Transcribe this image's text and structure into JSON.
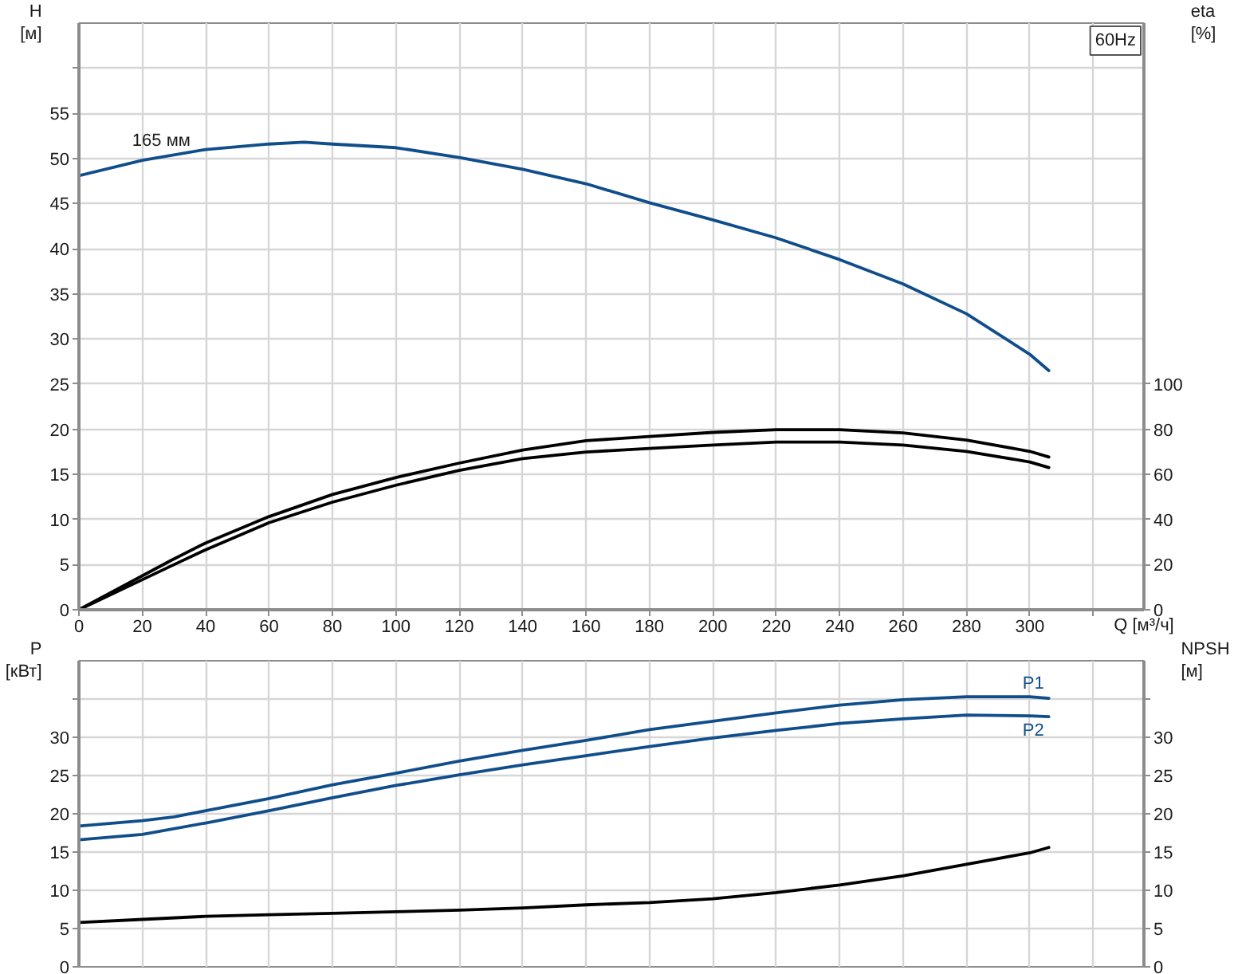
{
  "chart_data": [
    {
      "type": "line",
      "xlabel": "Q [м³/ч]",
      "ylabel": "H [м]",
      "y2label": "eta [%]",
      "xlim": [
        0,
        336
      ],
      "xticks": [
        0,
        20,
        40,
        60,
        80,
        100,
        120,
        140,
        160,
        180,
        200,
        220,
        240,
        260,
        280,
        300,
        {
          "value": 320,
          "label": null
        }
      ],
      "ylim": [
        0,
        65
      ],
      "yticks": [
        0,
        5,
        10,
        15,
        20,
        25,
        30,
        35,
        40,
        45,
        50,
        55,
        {
          "value": 60,
          "label": null
        }
      ],
      "y2lim": [
        0,
        260
      ],
      "y2ticks": [
        0,
        20,
        40,
        60,
        80,
        100
      ],
      "grid": true,
      "annotations": [
        "60Hz",
        {
          "text": "165 мм",
          "x": 26,
          "y": 50.7
        }
      ],
      "series": [
        {
          "color": "#104e8b",
          "x": [
            0,
            20,
            40,
            60,
            71,
            80,
            100,
            120,
            140,
            160,
            180,
            200,
            220,
            240,
            260,
            280,
            300,
            306
          ],
          "values": [
            48.1,
            49.8,
            51.0,
            51.6,
            51.8,
            51.6,
            51.2,
            50.1,
            48.8,
            47.2,
            45.1,
            43.2,
            41.2,
            38.8,
            36.1,
            32.8,
            28.3,
            26.5
          ]
        },
        {
          "color": "#000000",
          "axis": "y2",
          "x": [
            0,
            29,
            40,
            60,
            80,
            100,
            120,
            140,
            160,
            180,
            200,
            220,
            240,
            260,
            280,
            300,
            306
          ],
          "values": [
            0,
            21.8,
            29.6,
            41.3,
            51.1,
            58.6,
            65.0,
            70.8,
            74.9,
            76.8,
            78.6,
            79.8,
            79.8,
            78.4,
            75.2,
            70.2,
            67.7
          ]
        },
        {
          "color": "#000000",
          "axis": "y2",
          "x": [
            0,
            30,
            40,
            60,
            80,
            100,
            120,
            140,
            160,
            180,
            200,
            220,
            240,
            260,
            280,
            300,
            306
          ],
          "values": [
            0,
            20.0,
            26.6,
            38.6,
            47.7,
            55.2,
            61.8,
            67.0,
            69.9,
            71.5,
            73.0,
            74.3,
            74.3,
            73.0,
            70.2,
            65.5,
            63.0
          ]
        }
      ]
    },
    {
      "type": "line",
      "ylabel": "P [кВт]",
      "y2label": "NPSH [м]",
      "xlim": [
        0,
        336
      ],
      "xticks": [
        0,
        20,
        40,
        60,
        80,
        100,
        120,
        140,
        160,
        180,
        200,
        220,
        240,
        260,
        280,
        300,
        320
      ],
      "tick_labels": "y",
      "ylim": [
        0,
        40
      ],
      "yticks": [
        0,
        5,
        10,
        15,
        20,
        25,
        30,
        {
          "value": 35,
          "label": null
        }
      ],
      "y2lim": [
        0,
        40
      ],
      "y2ticks": [
        0,
        5,
        10,
        15,
        20,
        25,
        30,
        {
          "value": 35,
          "label": null
        }
      ],
      "grid": true,
      "series": [
        {
          "name": "P1",
          "color": "#104e8b",
          "x": [
            0,
            20,
            30,
            40,
            60,
            80,
            100,
            120,
            140,
            160,
            180,
            200,
            220,
            240,
            260,
            280,
            300,
            306
          ],
          "values": [
            18.4,
            19.1,
            19.6,
            20.4,
            22.0,
            23.8,
            25.3,
            26.9,
            28.3,
            29.6,
            31.0,
            32.1,
            33.2,
            34.2,
            34.9,
            35.3,
            35.3,
            35.1
          ]
        },
        {
          "name": "P2",
          "color": "#104e8b",
          "x": [
            0,
            20,
            40,
            60,
            80,
            100,
            120,
            140,
            160,
            180,
            200,
            220,
            240,
            260,
            280,
            300,
            306
          ],
          "values": [
            16.6,
            17.3,
            18.8,
            20.4,
            22.1,
            23.7,
            25.1,
            26.4,
            27.6,
            28.8,
            29.9,
            30.9,
            31.8,
            32.4,
            32.9,
            32.8,
            32.7
          ]
        },
        {
          "color": "#000000",
          "axis": "y2",
          "x": [
            0,
            20,
            40,
            60,
            80,
            100,
            120,
            140,
            160,
            180,
            200,
            220,
            240,
            260,
            280,
            300,
            306
          ],
          "values": [
            5.8,
            6.2,
            6.6,
            6.8,
            7.0,
            7.2,
            7.4,
            7.7,
            8.1,
            8.4,
            8.9,
            9.7,
            10.7,
            11.9,
            13.4,
            14.9,
            15.6
          ]
        }
      ]
    }
  ]
}
